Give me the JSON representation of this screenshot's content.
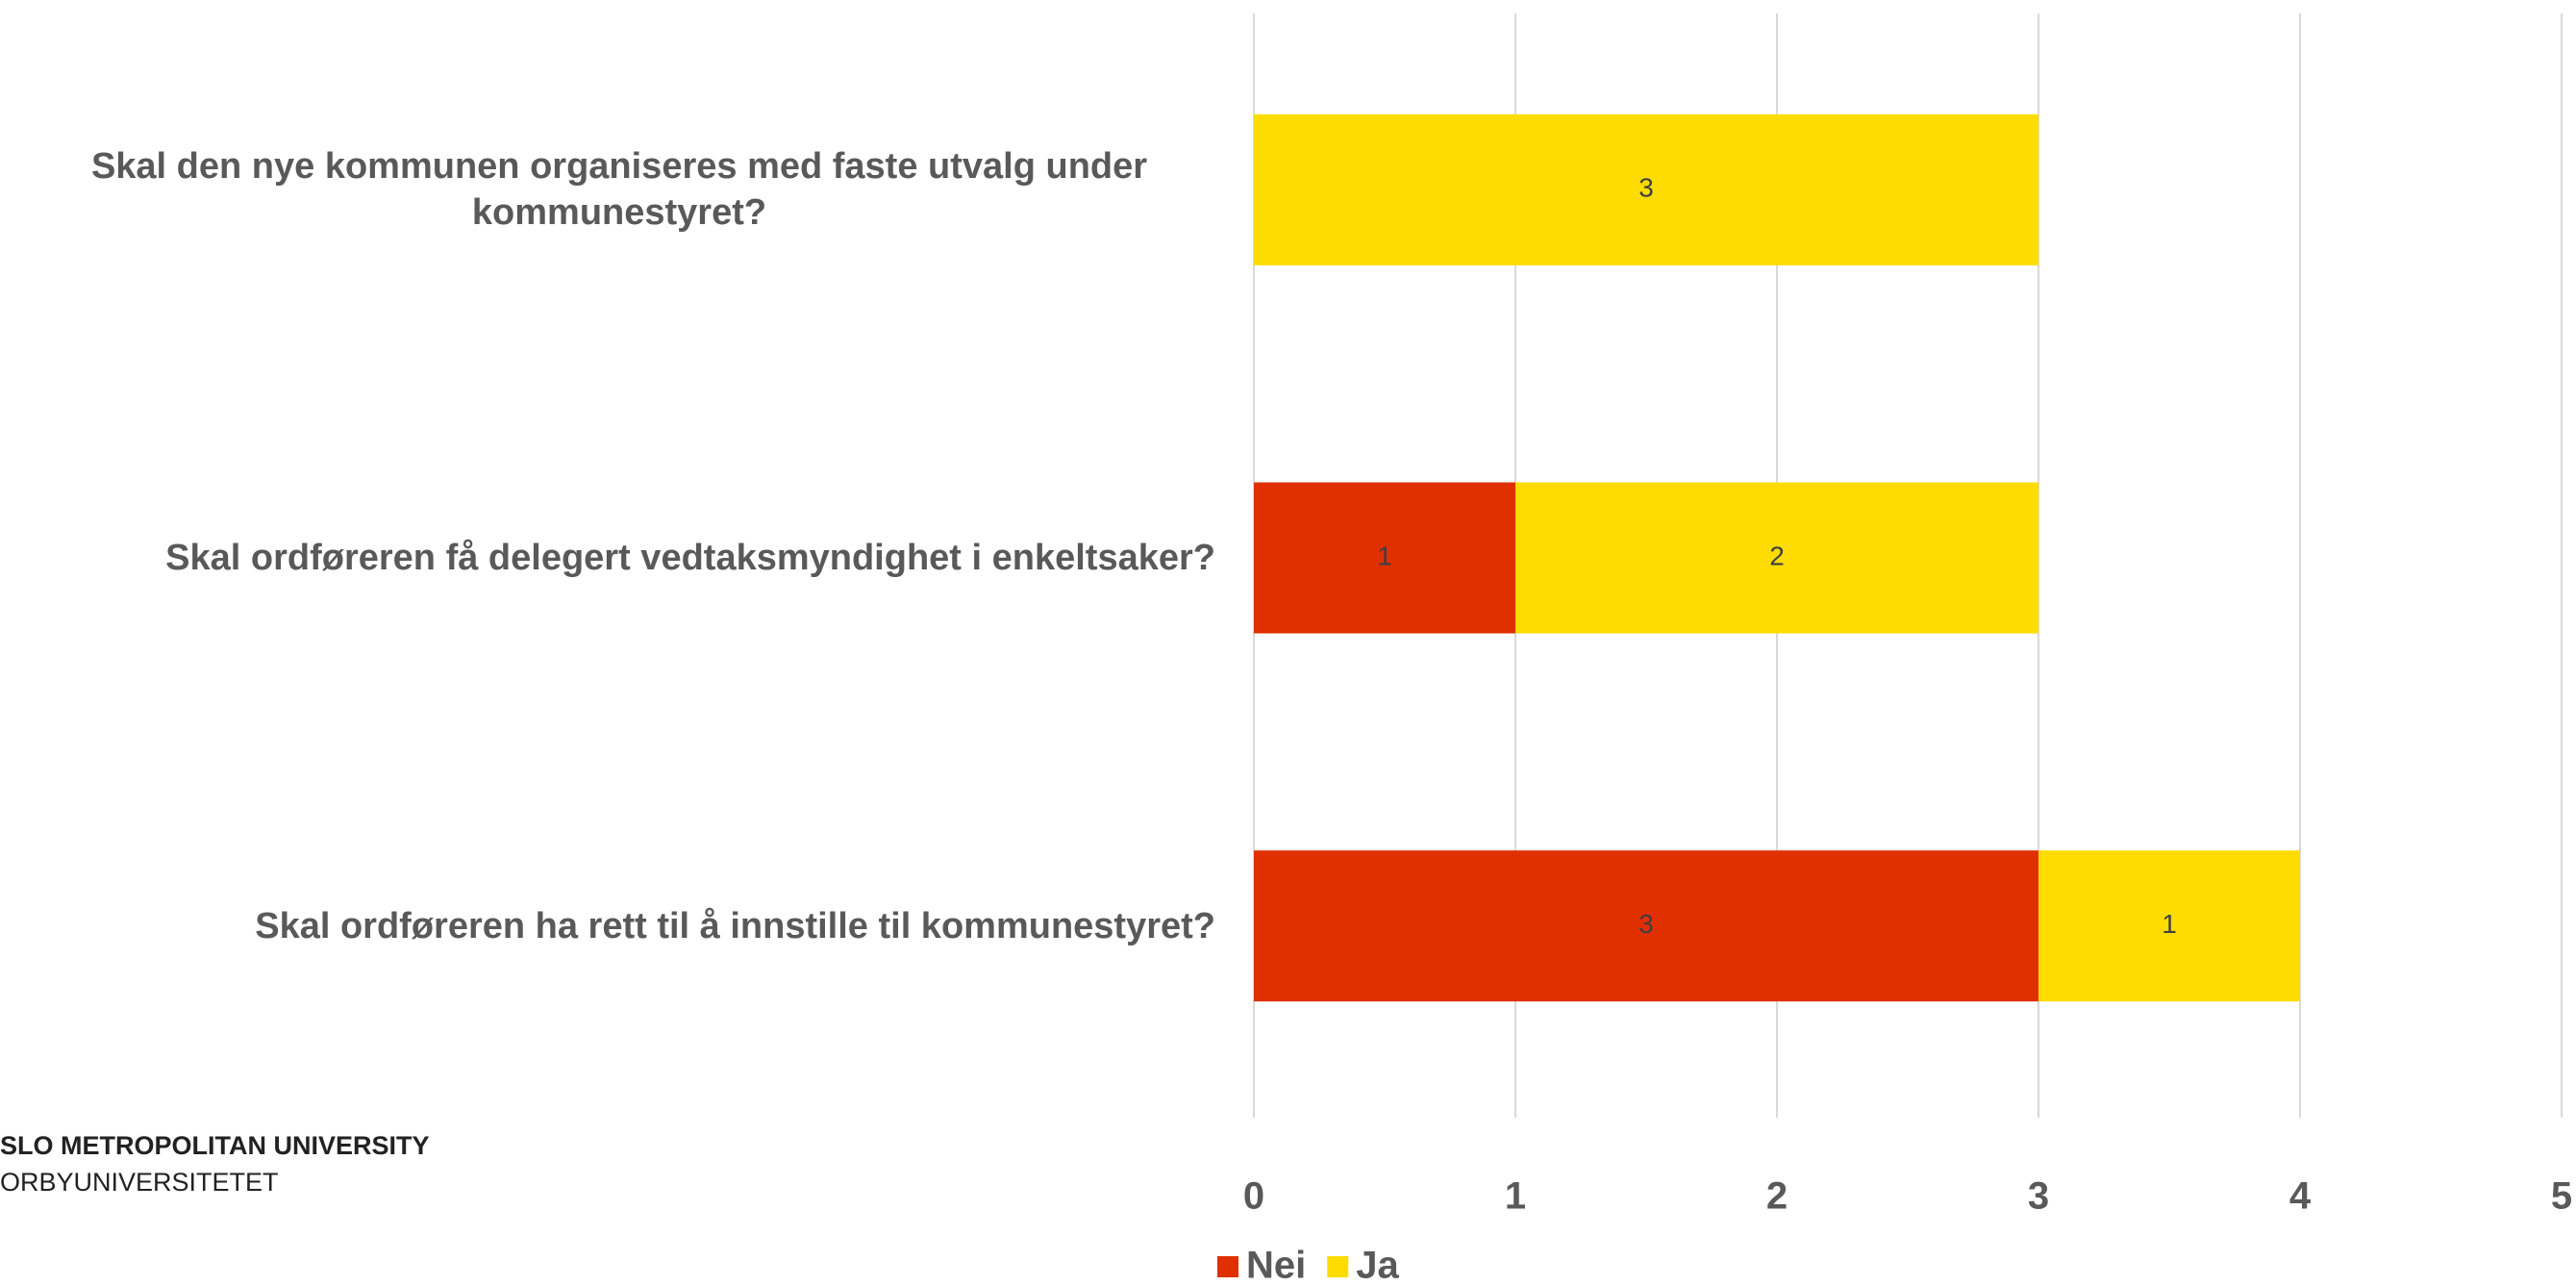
{
  "chart_data": {
    "type": "stacked_barh",
    "categories": [
      "Skal den nye kommunen organiseres med faste utvalg under kommunestyret?",
      "Skal ordføreren få delegert vedtaksmyndighet i enkeltsaker?",
      "Skal ordføreren ha rett til å innstille til kommunestyret?"
    ],
    "series": [
      {
        "name": "Nei",
        "color": "#e03000",
        "values": [
          null,
          1,
          3
        ]
      },
      {
        "name": "Ja",
        "color": "#ffdc00",
        "values": [
          3,
          2,
          1
        ]
      }
    ],
    "xlim": [
      0,
      5
    ],
    "xticks": [
      0,
      1,
      2,
      3,
      4,
      5
    ],
    "grid": true,
    "legend": "bottom"
  },
  "logo": {
    "line1": "SLO METROPOLITAN UNIVERSITY",
    "line2": "ORBYUNIVERSITETET"
  }
}
